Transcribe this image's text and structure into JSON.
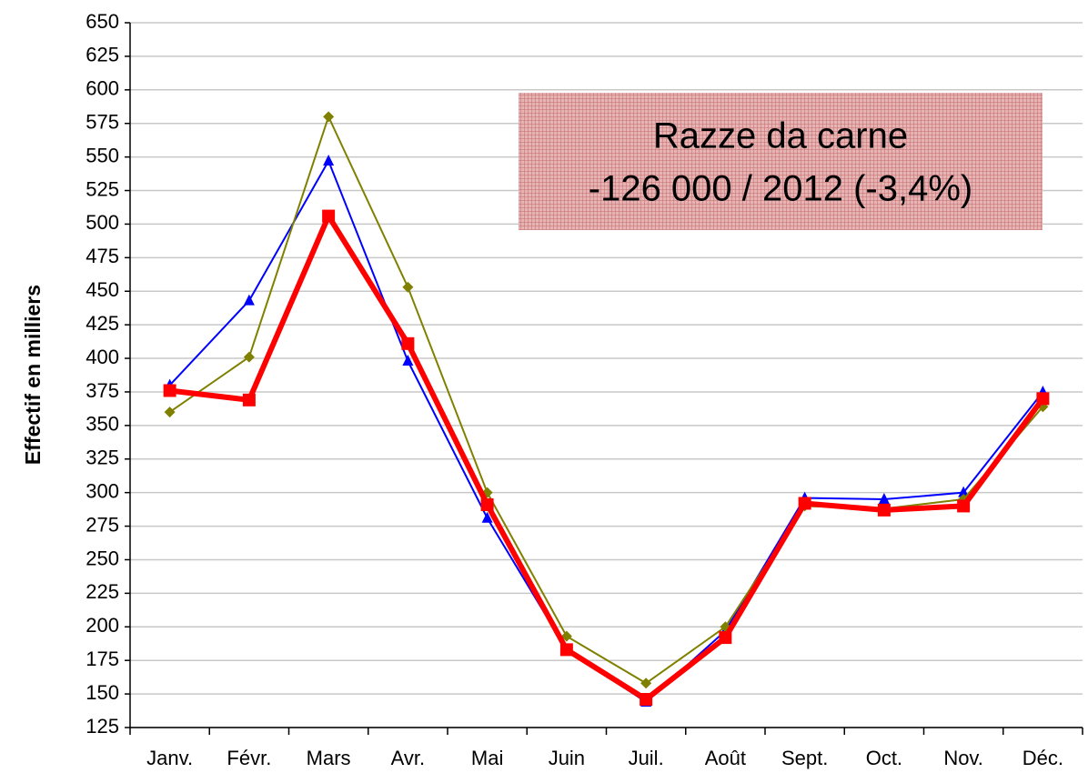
{
  "chart_data": {
    "type": "line",
    "ylabel": "Effectif en milliers",
    "annotation": [
      "Razze da carne",
      "-126 000 / 2012 (-3,4%)"
    ],
    "categories": [
      "Janv.",
      "Févr.",
      "Mars",
      "Avr.",
      "Mai",
      "Juin",
      "Juil.",
      "Août",
      "Sept.",
      "Oct.",
      "Nov.",
      "Déc."
    ],
    "series": [
      {
        "color": "#0000ff",
        "marker": "triangle",
        "values": [
          380,
          443,
          547,
          398,
          281,
          183,
          144,
          197,
          296,
          295,
          300,
          375
        ]
      },
      {
        "color": "#808000",
        "marker": "diamond",
        "values": [
          360,
          401,
          580,
          453,
          300,
          193,
          158,
          200,
          290,
          288,
          295,
          364
        ]
      },
      {
        "color": "#ff0000",
        "marker": "square",
        "values": [
          376,
          369,
          506,
          411,
          291,
          183,
          146,
          192,
          292,
          287,
          290,
          370
        ]
      }
    ],
    "ylim": [
      125,
      650
    ],
    "yticks": [
      125,
      150,
      175,
      200,
      225,
      250,
      275,
      300,
      325,
      350,
      375,
      400,
      425,
      450,
      475,
      500,
      525,
      550,
      575,
      600,
      625,
      650
    ],
    "grid": true
  }
}
